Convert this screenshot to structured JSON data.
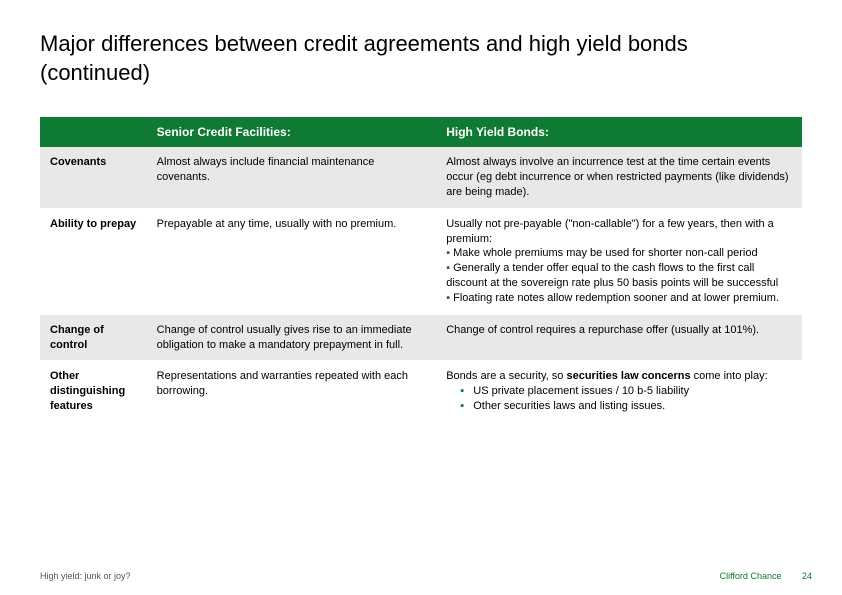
{
  "colors": {
    "brand_green": "#0e7a34",
    "row_alt_bg": "#e8e8e8",
    "background": "#ffffff",
    "text": "#000000"
  },
  "typography": {
    "title_fontsize": 22,
    "header_fontsize": 12,
    "body_fontsize": 11,
    "footer_fontsize": 9
  },
  "title": "Major differences between credit agreements and high yield bonds (continued)",
  "table": {
    "type": "table",
    "column_widths_pct": [
      14,
      38,
      48
    ],
    "headers": {
      "col0": "",
      "col1": "Senior Credit Facilities:",
      "col2": "High Yield Bonds:"
    },
    "rows": [
      {
        "label": "Covenants",
        "scf": "Almost always include financial maintenance covenants.",
        "hyb": "Almost always involve an incurrence test at the time certain events occur (eg debt incurrence or when restricted payments (like dividends) are being made)."
      },
      {
        "label": "Ability to prepay",
        "scf": "Prepayable at any time, usually with no premium.",
        "hyb_intro": "Usually not pre-payable (\"non-callable\") for a few years, then with a premium:",
        "hyb_bullets": [
          "Make whole premiums may be used for shorter non-call period",
          "Generally a tender offer equal to the cash flows to the first call discount at the sovereign rate plus 50 basis points will be successful",
          "Floating rate notes allow redemption sooner and at lower premium."
        ]
      },
      {
        "label": "Change of control",
        "scf": "Change of control usually gives rise to an immediate obligation to make a mandatory prepayment in full.",
        "hyb": "Change of control requires a repurchase offer (usually at 101%)."
      },
      {
        "label": "Other distinguishing features",
        "scf": "Representations and warranties repeated with each borrowing.",
        "hyb_prefix": "Bonds are a security, so ",
        "hyb_strong": "securities law concerns",
        "hyb_suffix": " come into play:",
        "hyb_bullets": [
          "US private placement issues / 10 b-5 liability",
          "Other securities laws and listing issues."
        ]
      }
    ]
  },
  "footer": {
    "left": "High yield: junk or joy?",
    "brand": "Clifford Chance",
    "page": "24"
  }
}
